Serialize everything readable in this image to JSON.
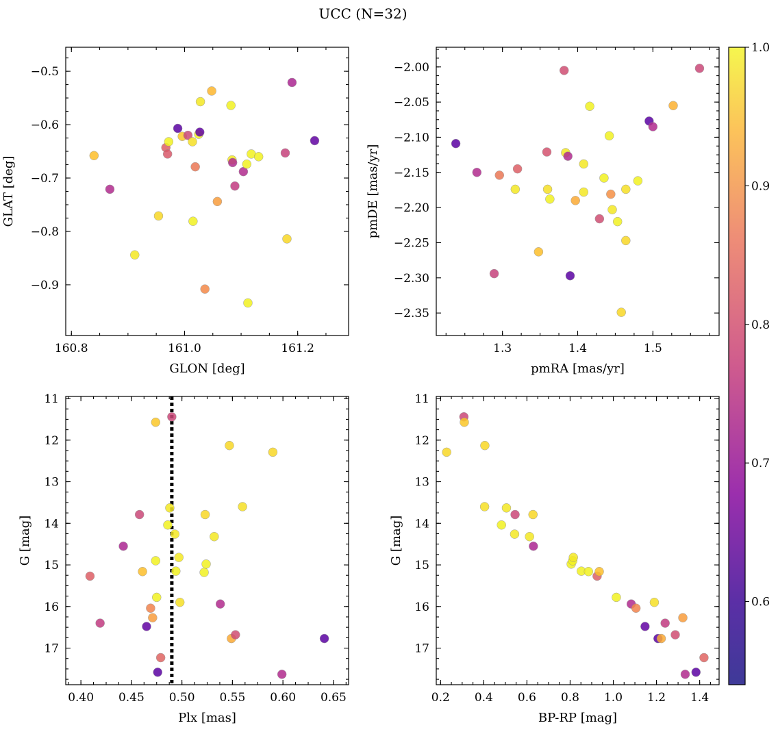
{
  "title": "UCC (N=32)",
  "colorbar": {
    "min": 0.54,
    "max": 1.0,
    "ticks": [
      "1.0",
      "0.9",
      "0.8",
      "0.7",
      "0.6"
    ],
    "colormap": "plasma"
  },
  "chart_data": [
    {
      "type": "scatter",
      "xlabel": "GLON [deg]",
      "ylabel": "GLAT [deg]",
      "xlim": [
        160.79,
        161.29
      ],
      "ylim": [
        -0.995,
        -0.455
      ],
      "y_inverted": false,
      "xticks": [
        {
          "v": 160.8,
          "label": "160.8"
        },
        {
          "v": 161.0,
          "label": "161.0"
        },
        {
          "v": 161.2,
          "label": "161.2"
        }
      ],
      "yticks": [
        {
          "v": -0.5,
          "label": "−0.5"
        },
        {
          "v": -0.6,
          "label": "−0.6"
        },
        {
          "v": -0.7,
          "label": "−0.7"
        },
        {
          "v": -0.8,
          "label": "−0.8"
        },
        {
          "v": -0.9,
          "label": "−0.9"
        }
      ],
      "points": [
        {
          "x": 160.84,
          "y": -0.658,
          "c": 0.93
        },
        {
          "x": 160.868,
          "y": -0.721,
          "c": 0.69
        },
        {
          "x": 160.912,
          "y": -0.844,
          "c": 0.98
        },
        {
          "x": 160.954,
          "y": -0.771,
          "c": 0.96
        },
        {
          "x": 160.967,
          "y": -0.643,
          "c": 0.78
        },
        {
          "x": 160.97,
          "y": -0.655,
          "c": 0.77
        },
        {
          "x": 160.972,
          "y": -0.632,
          "c": 0.99
        },
        {
          "x": 160.988,
          "y": -0.607,
          "c": 0.56
        },
        {
          "x": 160.996,
          "y": -0.622,
          "c": 0.94
        },
        {
          "x": 161.006,
          "y": -0.62,
          "c": 0.74
        },
        {
          "x": 161.014,
          "y": -0.632,
          "c": 0.97
        },
        {
          "x": 161.015,
          "y": -0.781,
          "c": 0.99
        },
        {
          "x": 161.019,
          "y": -0.679,
          "c": 0.82
        },
        {
          "x": 161.025,
          "y": -0.618,
          "c": 0.99
        },
        {
          "x": 161.027,
          "y": -0.614,
          "c": 0.57
        },
        {
          "x": 161.028,
          "y": -0.557,
          "c": 0.98
        },
        {
          "x": 161.036,
          "y": -0.908,
          "c": 0.85
        },
        {
          "x": 161.048,
          "y": -0.537,
          "c": 0.92
        },
        {
          "x": 161.058,
          "y": -0.744,
          "c": 0.88
        },
        {
          "x": 161.082,
          "y": -0.564,
          "c": 0.99
        },
        {
          "x": 161.084,
          "y": -0.666,
          "c": 0.98
        },
        {
          "x": 161.085,
          "y": -0.671,
          "c": 0.69
        },
        {
          "x": 161.089,
          "y": -0.715,
          "c": 0.72
        },
        {
          "x": 161.104,
          "y": -0.688,
          "c": 0.69
        },
        {
          "x": 161.11,
          "y": -0.674,
          "c": 0.99
        },
        {
          "x": 161.112,
          "y": -0.934,
          "c": 0.99
        },
        {
          "x": 161.118,
          "y": -0.655,
          "c": 0.99
        },
        {
          "x": 161.131,
          "y": -0.66,
          "c": 0.99
        },
        {
          "x": 161.178,
          "y": -0.653,
          "c": 0.73
        },
        {
          "x": 161.181,
          "y": -0.814,
          "c": 0.96
        },
        {
          "x": 161.19,
          "y": -0.521,
          "c": 0.68
        },
        {
          "x": 161.23,
          "y": -0.63,
          "c": 0.57
        }
      ]
    },
    {
      "type": "scatter",
      "xlabel": "pmRA [mas/yr]",
      "ylabel": "pmDE [mas/yr]",
      "xlim": [
        1.212,
        1.588
      ],
      "ylim": [
        -2.382,
        -1.972
      ],
      "y_inverted": false,
      "xticks": [
        {
          "v": 1.3,
          "label": "1.3"
        },
        {
          "v": 1.4,
          "label": "1.4"
        },
        {
          "v": 1.5,
          "label": "1.5"
        }
      ],
      "yticks": [
        {
          "v": -2.0,
          "label": "−2.00"
        },
        {
          "v": -2.05,
          "label": "−2.05"
        },
        {
          "v": -2.1,
          "label": "−2.10"
        },
        {
          "v": -2.15,
          "label": "−2.15"
        },
        {
          "v": -2.2,
          "label": "−2.20"
        },
        {
          "v": -2.25,
          "label": "−2.25"
        },
        {
          "v": -2.3,
          "label": "−2.30"
        },
        {
          "v": -2.35,
          "label": "−2.35"
        }
      ],
      "points": [
        {
          "x": 1.238,
          "y": -2.109,
          "c": 0.56
        },
        {
          "x": 1.266,
          "y": -2.15,
          "c": 0.69
        },
        {
          "x": 1.289,
          "y": -2.294,
          "c": 0.73
        },
        {
          "x": 1.296,
          "y": -2.154,
          "c": 0.82
        },
        {
          "x": 1.317,
          "y": -2.174,
          "c": 0.98
        },
        {
          "x": 1.32,
          "y": -2.145,
          "c": 0.78
        },
        {
          "x": 1.348,
          "y": -2.263,
          "c": 0.93
        },
        {
          "x": 1.359,
          "y": -2.121,
          "c": 0.76
        },
        {
          "x": 1.36,
          "y": -2.174,
          "c": 0.97
        },
        {
          "x": 1.363,
          "y": -2.188,
          "c": 0.99
        },
        {
          "x": 1.382,
          "y": -2.005,
          "c": 0.75
        },
        {
          "x": 1.384,
          "y": -2.122,
          "c": 0.98
        },
        {
          "x": 1.387,
          "y": -2.127,
          "c": 0.69
        },
        {
          "x": 1.39,
          "y": -2.297,
          "c": 0.56
        },
        {
          "x": 1.397,
          "y": -2.19,
          "c": 0.9
        },
        {
          "x": 1.408,
          "y": -2.138,
          "c": 0.98
        },
        {
          "x": 1.408,
          "y": -2.178,
          "c": 0.98
        },
        {
          "x": 1.416,
          "y": -2.056,
          "c": 0.99
        },
        {
          "x": 1.429,
          "y": -2.216,
          "c": 0.75
        },
        {
          "x": 1.435,
          "y": -2.158,
          "c": 0.99
        },
        {
          "x": 1.442,
          "y": -2.098,
          "c": 0.99
        },
        {
          "x": 1.444,
          "y": -2.181,
          "c": 0.86
        },
        {
          "x": 1.446,
          "y": -2.203,
          "c": 0.98
        },
        {
          "x": 1.453,
          "y": -2.22,
          "c": 0.99
        },
        {
          "x": 1.458,
          "y": -2.349,
          "c": 0.96
        },
        {
          "x": 1.464,
          "y": -2.174,
          "c": 0.97
        },
        {
          "x": 1.464,
          "y": -2.247,
          "c": 0.96
        },
        {
          "x": 1.48,
          "y": -2.162,
          "c": 0.99
        },
        {
          "x": 1.495,
          "y": -2.077,
          "c": 0.56
        },
        {
          "x": 1.5,
          "y": -2.085,
          "c": 0.69
        },
        {
          "x": 1.527,
          "y": -2.055,
          "c": 0.91
        },
        {
          "x": 1.562,
          "y": -2.002,
          "c": 0.74
        }
      ]
    },
    {
      "type": "scatter",
      "xlabel": "Plx [mas]",
      "ylabel": "G [mag]",
      "xlim": [
        0.385,
        0.665
      ],
      "ylim": [
        17.88,
        10.95
      ],
      "y_inverted": true,
      "xticks": [
        {
          "v": 0.4,
          "label": "0.40"
        },
        {
          "v": 0.45,
          "label": "0.45"
        },
        {
          "v": 0.5,
          "label": "0.50"
        },
        {
          "v": 0.55,
          "label": "0.55"
        },
        {
          "v": 0.6,
          "label": "0.60"
        },
        {
          "v": 0.65,
          "label": "0.65"
        }
      ],
      "yticks": [
        {
          "v": 11,
          "label": "11"
        },
        {
          "v": 12,
          "label": "12"
        },
        {
          "v": 13,
          "label": "13"
        },
        {
          "v": 14,
          "label": "14"
        },
        {
          "v": 15,
          "label": "15"
        },
        {
          "v": 16,
          "label": "16"
        },
        {
          "v": 17,
          "label": "17"
        }
      ],
      "vline": 0.49,
      "points": [
        {
          "x": 0.409,
          "y": 15.27,
          "c": 0.78
        },
        {
          "x": 0.419,
          "y": 16.4,
          "c": 0.72
        },
        {
          "x": 0.442,
          "y": 14.55,
          "c": 0.68
        },
        {
          "x": 0.458,
          "y": 13.79,
          "c": 0.74
        },
        {
          "x": 0.461,
          "y": 15.16,
          "c": 0.93
        },
        {
          "x": 0.465,
          "y": 16.48,
          "c": 0.57
        },
        {
          "x": 0.469,
          "y": 16.04,
          "c": 0.84
        },
        {
          "x": 0.471,
          "y": 16.27,
          "c": 0.88
        },
        {
          "x": 0.474,
          "y": 11.57,
          "c": 0.94
        },
        {
          "x": 0.474,
          "y": 14.9,
          "c": 0.99
        },
        {
          "x": 0.475,
          "y": 15.78,
          "c": 0.99
        },
        {
          "x": 0.476,
          "y": 17.58,
          "c": 0.56
        },
        {
          "x": 0.479,
          "y": 17.23,
          "c": 0.79
        },
        {
          "x": 0.486,
          "y": 14.04,
          "c": 0.99
        },
        {
          "x": 0.488,
          "y": 13.63,
          "c": 0.98
        },
        {
          "x": 0.49,
          "y": 11.44,
          "c": 0.74
        },
        {
          "x": 0.493,
          "y": 14.26,
          "c": 0.98
        },
        {
          "x": 0.494,
          "y": 15.15,
          "c": 0.99
        },
        {
          "x": 0.497,
          "y": 14.82,
          "c": 0.98
        },
        {
          "x": 0.498,
          "y": 15.9,
          "c": 0.97
        },
        {
          "x": 0.522,
          "y": 15.18,
          "c": 0.99
        },
        {
          "x": 0.523,
          "y": 13.79,
          "c": 0.96
        },
        {
          "x": 0.524,
          "y": 14.98,
          "c": 0.99
        },
        {
          "x": 0.532,
          "y": 14.32,
          "c": 0.98
        },
        {
          "x": 0.538,
          "y": 15.94,
          "c": 0.69
        },
        {
          "x": 0.547,
          "y": 12.13,
          "c": 0.96
        },
        {
          "x": 0.549,
          "y": 16.77,
          "c": 0.9
        },
        {
          "x": 0.553,
          "y": 16.68,
          "c": 0.75
        },
        {
          "x": 0.56,
          "y": 13.6,
          "c": 0.97
        },
        {
          "x": 0.59,
          "y": 12.29,
          "c": 0.96
        },
        {
          "x": 0.599,
          "y": 17.63,
          "c": 0.69
        },
        {
          "x": 0.641,
          "y": 16.77,
          "c": 0.56
        }
      ]
    },
    {
      "type": "scatter",
      "xlabel": "BP-RP [mag]",
      "ylabel": "G [mag]",
      "xlim": [
        0.18,
        1.49
      ],
      "ylim": [
        17.88,
        10.95
      ],
      "y_inverted": true,
      "xticks": [
        {
          "v": 0.2,
          "label": "0.2"
        },
        {
          "v": 0.4,
          "label": "0.4"
        },
        {
          "v": 0.6,
          "label": "0.6"
        },
        {
          "v": 0.8,
          "label": "0.8"
        },
        {
          "v": 1.0,
          "label": "1.0"
        },
        {
          "v": 1.2,
          "label": "1.2"
        },
        {
          "v": 1.4,
          "label": "1.4"
        }
      ],
      "yticks": [
        {
          "v": 11,
          "label": "11"
        },
        {
          "v": 12,
          "label": "12"
        },
        {
          "v": 13,
          "label": "13"
        },
        {
          "v": 14,
          "label": "14"
        },
        {
          "v": 15,
          "label": "15"
        },
        {
          "v": 16,
          "label": "16"
        },
        {
          "v": 17,
          "label": "17"
        }
      ],
      "points": [
        {
          "x": 0.228,
          "y": 12.29,
          "c": 0.96
        },
        {
          "x": 0.308,
          "y": 11.44,
          "c": 0.74
        },
        {
          "x": 0.31,
          "y": 11.57,
          "c": 0.94
        },
        {
          "x": 0.405,
          "y": 12.13,
          "c": 0.96
        },
        {
          "x": 0.404,
          "y": 13.6,
          "c": 0.97
        },
        {
          "x": 0.482,
          "y": 14.04,
          "c": 0.99
        },
        {
          "x": 0.505,
          "y": 13.63,
          "c": 0.98
        },
        {
          "x": 0.545,
          "y": 13.79,
          "c": 0.74
        },
        {
          "x": 0.543,
          "y": 14.26,
          "c": 0.98
        },
        {
          "x": 0.612,
          "y": 14.32,
          "c": 0.98
        },
        {
          "x": 0.628,
          "y": 13.79,
          "c": 0.96
        },
        {
          "x": 0.63,
          "y": 14.55,
          "c": 0.68
        },
        {
          "x": 0.805,
          "y": 14.98,
          "c": 0.99
        },
        {
          "x": 0.812,
          "y": 14.9,
          "c": 0.99
        },
        {
          "x": 0.815,
          "y": 14.82,
          "c": 0.98
        },
        {
          "x": 0.852,
          "y": 15.15,
          "c": 0.99
        },
        {
          "x": 0.885,
          "y": 15.16,
          "c": 0.99
        },
        {
          "x": 0.925,
          "y": 15.27,
          "c": 0.78
        },
        {
          "x": 0.935,
          "y": 15.16,
          "c": 0.93
        },
        {
          "x": 1.014,
          "y": 15.78,
          "c": 0.99
        },
        {
          "x": 1.083,
          "y": 15.94,
          "c": 0.69
        },
        {
          "x": 1.105,
          "y": 16.04,
          "c": 0.84
        },
        {
          "x": 1.147,
          "y": 16.48,
          "c": 0.57
        },
        {
          "x": 1.19,
          "y": 15.9,
          "c": 0.97
        },
        {
          "x": 1.207,
          "y": 16.77,
          "c": 0.56
        },
        {
          "x": 1.222,
          "y": 16.77,
          "c": 0.9
        },
        {
          "x": 1.24,
          "y": 16.4,
          "c": 0.72
        },
        {
          "x": 1.287,
          "y": 16.68,
          "c": 0.75
        },
        {
          "x": 1.322,
          "y": 16.27,
          "c": 0.88
        },
        {
          "x": 1.333,
          "y": 17.63,
          "c": 0.69
        },
        {
          "x": 1.383,
          "y": 17.58,
          "c": 0.56
        },
        {
          "x": 1.42,
          "y": 17.23,
          "c": 0.79
        }
      ]
    }
  ]
}
